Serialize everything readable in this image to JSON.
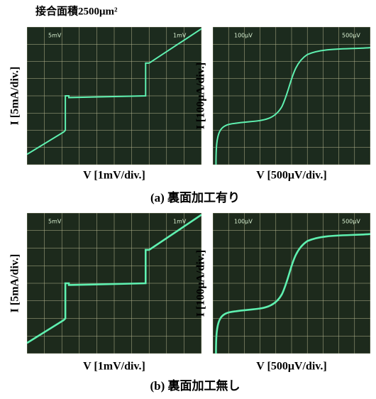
{
  "title": "接合面積2500μm²",
  "figures": [
    {
      "caption": "(a)  裏面加工有り",
      "panels": [
        {
          "ylabel": "I [5mA/div.]",
          "xlabel": "V [1mV/div.]",
          "scope_labels": [
            "5mV",
            "1mV"
          ]
        },
        {
          "ylabel": "I [100μA/div.]",
          "xlabel": "V [500μV/div.]",
          "scope_labels": [
            "100μV",
            "500μV"
          ]
        }
      ]
    },
    {
      "caption": "(b)  裏面加工無し",
      "panels": [
        {
          "ylabel": "I [5mA/div.]",
          "xlabel": "V [1mV/div.]",
          "scope_labels": [
            "5mV",
            "1mV"
          ]
        },
        {
          "ylabel": "I [100μA/div.]",
          "xlabel": "V [500μV/div.]",
          "scope_labels": [
            "100μV",
            "500μV"
          ]
        }
      ]
    }
  ]
}
